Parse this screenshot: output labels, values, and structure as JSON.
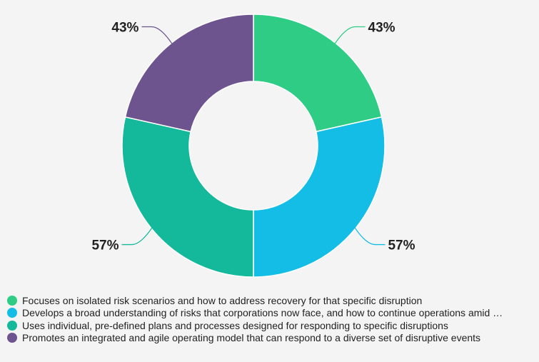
{
  "chart_data": {
    "type": "pie",
    "donut": true,
    "series": [
      {
        "name": "Focuses on isolated risk scenarios and how to address recovery for that specific disruption",
        "value": 43,
        "label": "43%",
        "color": "#2ecc84"
      },
      {
        "name": "Develops a broad understanding of risks that corporations now face, and how to continue operations amid …",
        "value": 57,
        "label": "57%",
        "color": "#14bde6"
      },
      {
        "name": "Uses individual, pre-defined plans and processes designed for responding to specific disruptions",
        "value": 57,
        "label": "57%",
        "color": "#14b89a"
      },
      {
        "name": "Promotes an integrated and agile operating model that can respond to a diverse set of disruptive events",
        "value": 43,
        "label": "43%",
        "color": "#6e548f"
      }
    ],
    "legend_position": "bottom-left"
  }
}
